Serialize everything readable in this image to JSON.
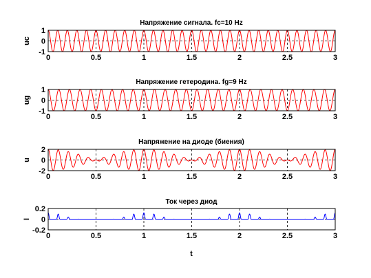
{
  "chart_data": [
    {
      "type": "line",
      "title": "Напряжение сигнала. fc=10 Hz",
      "ylabel": "uc",
      "xlabel": "",
      "xlim": [
        0,
        3
      ],
      "ylim": [
        -1,
        1
      ],
      "xticks": [
        "0",
        "0.5",
        "1",
        "1.5",
        "2",
        "2.5",
        "3"
      ],
      "yticks": [
        "1",
        "0",
        "-1"
      ],
      "grid": true,
      "series": [
        {
          "formula": "cos(2*pi*10*t)",
          "frequency_hz": 10,
          "amplitude": 1,
          "color": "#ff0000"
        }
      ]
    },
    {
      "type": "line",
      "title": "Напряжение гетеродина. fg=9 Hz",
      "ylabel": "ug",
      "xlabel": "",
      "xlim": [
        0,
        3
      ],
      "ylim": [
        -1,
        1
      ],
      "xticks": [
        "0",
        "0.5",
        "1",
        "1.5",
        "2",
        "2.5",
        "3"
      ],
      "yticks": [
        "1",
        "0",
        "-1"
      ],
      "grid": true,
      "series": [
        {
          "formula": "cos(2*pi*9*t)",
          "frequency_hz": 9,
          "amplitude": 1,
          "color": "#ff0000"
        }
      ]
    },
    {
      "type": "line",
      "title": "Напряжение на диоде (биения)",
      "ylabel": "u",
      "xlabel": "",
      "xlim": [
        0,
        3
      ],
      "ylim": [
        -2,
        2
      ],
      "xticks": [
        "0",
        "0.5",
        "1",
        "1.5",
        "2",
        "2.5",
        "3"
      ],
      "yticks": [
        "2",
        "0",
        "-2"
      ],
      "grid": true,
      "series": [
        {
          "formula": "cos(2*pi*10*t) + cos(2*pi*9*t)",
          "color": "#ff0000"
        }
      ]
    },
    {
      "type": "line",
      "title": "Ток через диод",
      "ylabel": "I",
      "xlabel": "t",
      "xlim": [
        0,
        3
      ],
      "ylim": [
        -0.2,
        0.2
      ],
      "xticks": [
        "0",
        "0.5",
        "1",
        "1.5",
        "2",
        "2.5",
        "3"
      ],
      "yticks": [
        "0.2",
        "0",
        "-0.2"
      ],
      "grid": true,
      "series": [
        {
          "formula": "0.12*max(0, u-1)^2",
          "color": "#0000ff"
        }
      ]
    }
  ]
}
